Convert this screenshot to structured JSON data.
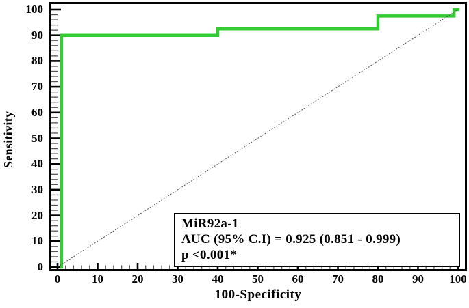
{
  "chart_data": {
    "type": "line",
    "subtype": "roc-curve",
    "title": "",
    "xlabel": "100-Specificity",
    "ylabel": "Sensitivity",
    "xlim": [
      0,
      100
    ],
    "ylim": [
      0,
      100
    ],
    "grid": false,
    "legend_position": "none",
    "x_ticks": [
      0,
      10,
      20,
      30,
      40,
      50,
      60,
      70,
      80,
      90,
      100
    ],
    "y_ticks": [
      0,
      10,
      20,
      30,
      40,
      50,
      60,
      70,
      80,
      90,
      100
    ],
    "minor_tick_step": 2,
    "series": [
      {
        "id": "roc-curve-mir92a-1",
        "name": "MiR92a-1 ROC curve",
        "color": "#33cc33",
        "stroke_width": 4.5,
        "dash": "",
        "points": [
          [
            1,
            0
          ],
          [
            1,
            90
          ],
          [
            40,
            90
          ],
          [
            40,
            92.5
          ],
          [
            80,
            92.5
          ],
          [
            80,
            97.5
          ],
          [
            99,
            97.5
          ],
          [
            99,
            100
          ],
          [
            100,
            100
          ]
        ]
      },
      {
        "id": "reference-diagonal",
        "name": "chance reference line",
        "color": "#555555",
        "stroke_width": 1,
        "dash": "2,2",
        "points": [
          [
            0,
            0
          ],
          [
            100,
            100
          ]
        ]
      }
    ],
    "annotation_box": {
      "line1": "MiR92a-1",
      "line2": "AUC (95% C.I) = 0.925 (0.851 - 0.999)",
      "line3": "p <0.001*"
    },
    "colors": {
      "curve": "#33cc33",
      "reference": "#555555",
      "axis": "#000000",
      "minor_tick": "#555555",
      "background": "#ffffff"
    }
  }
}
